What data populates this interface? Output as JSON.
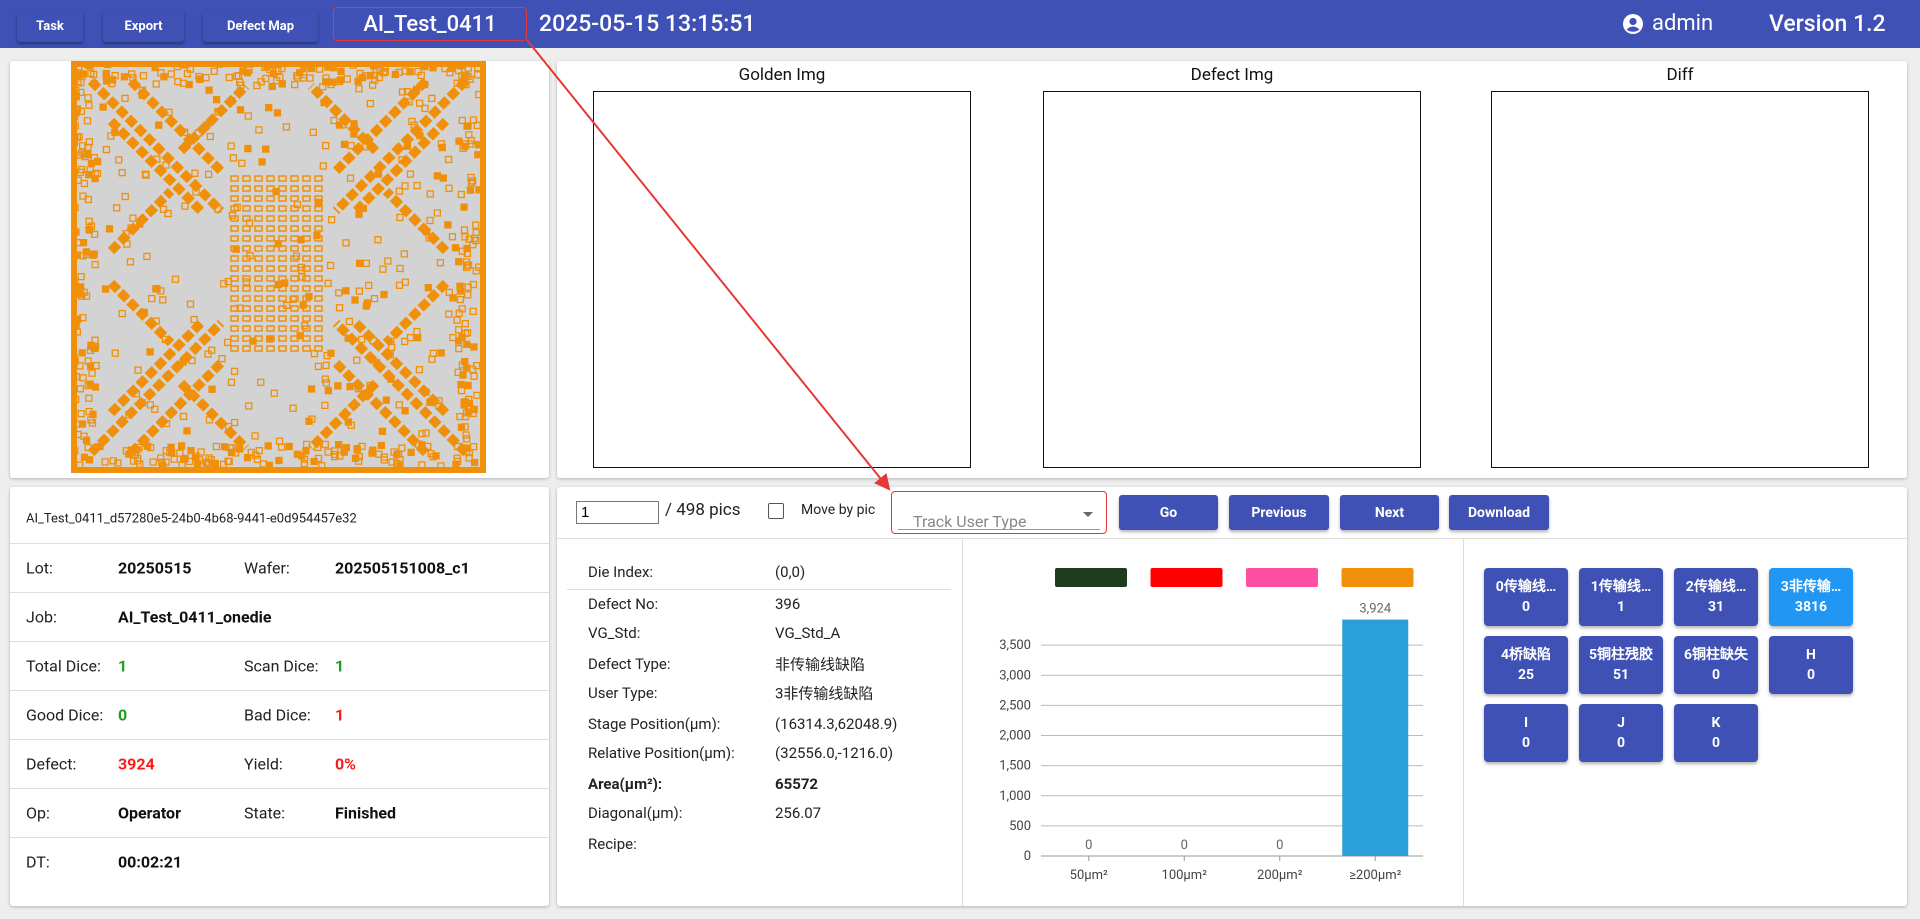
{
  "nav": {
    "buttons": [
      "Task",
      "Export",
      "Defect Map"
    ],
    "task_name": "AI_Test_0411",
    "datetime": "2025-05-15 13:15:51",
    "user": "admin",
    "version": "Version 1.2"
  },
  "images": {
    "titles": [
      "Golden Img",
      "Defect Img",
      "Diff"
    ]
  },
  "info": {
    "id": "AI_Test_0411_d57280e5-24b0-4b68-9441-e0d954457e32",
    "rows": [
      [
        {
          "label": "Lot:",
          "value": "20250515"
        },
        {
          "label": "Wafer:",
          "value": "202505151008_c1"
        }
      ],
      [
        {
          "label": "Job:",
          "value": "AI_Test_0411_onedie"
        }
      ],
      [
        {
          "label": "Total Dice:",
          "value": "1",
          "color": "#1e9e1e"
        },
        {
          "label": "Scan Dice:",
          "value": "1",
          "color": "#1e9e1e"
        }
      ],
      [
        {
          "label": "Good Dice:",
          "value": "0",
          "color": "#1e9e1e"
        },
        {
          "label": "Bad Dice:",
          "value": "1",
          "color": "#ff1a1a"
        }
      ],
      [
        {
          "label": "Defect:",
          "value": "3924",
          "color": "#ff1a1a"
        },
        {
          "label": "Yield:",
          "value": "0%",
          "color": "#ff1a1a"
        }
      ],
      [
        {
          "label": "Op:",
          "value": "Operator"
        },
        {
          "label": "State:",
          "value": "Finished"
        }
      ],
      [
        {
          "label": "DT:",
          "value": "00:02:21"
        }
      ]
    ]
  },
  "controls": {
    "page": "1",
    "total": "/ 498 pics",
    "move_by_pic": "Move by pic",
    "select_placeholder": "Track User Type",
    "buttons": [
      "Go",
      "Previous",
      "Next",
      "Download"
    ]
  },
  "details": [
    {
      "label": "Die Index:",
      "value": "(0,0)"
    },
    {
      "label": "Defect No:",
      "value": "396"
    },
    {
      "label": "VG_Std:",
      "value": "VG_Std_A"
    },
    {
      "label": "Defect Type:",
      "value": "非传输线缺陷"
    },
    {
      "label": "User Type:",
      "value": "3非传输线缺陷"
    },
    {
      "label": "Stage Position(µm):",
      "value": "(16314.3,62048.9)"
    },
    {
      "label": "Relative Position(µm):",
      "value": "(32556.0,-1216.0)"
    },
    {
      "label": "Area(µm²):",
      "value": "65572",
      "bold": true
    },
    {
      "label": "Diagonal(µm):",
      "value": "256.07"
    },
    {
      "label": "Recipe:"
    }
  ],
  "chart_data": {
    "type": "bar",
    "categories": [
      "50µm²",
      "100µm²",
      "200µm²",
      "≥200µm²"
    ],
    "values": [
      0,
      0,
      0,
      3924
    ],
    "value_labels": [
      "0",
      "0",
      "0",
      "3,924"
    ],
    "color": "#2b9fd8",
    "ylim": [
      0,
      4000
    ],
    "yticks": [
      0,
      500,
      {
        "value": 1000,
        "label": "1,000"
      },
      {
        "value": 1500,
        "label": "1,500"
      },
      {
        "value": 2000,
        "label": "2,000"
      },
      {
        "value": 2500,
        "label": "2,500"
      },
      {
        "value": 3000,
        "label": "3,000"
      },
      {
        "value": 3500,
        "label": "3,500"
      }
    ],
    "grid": true,
    "legend_colors": [
      "#1e3d1e",
      "#ff0000",
      "#ff4fa3",
      "#f0900a"
    ]
  },
  "classes": [
    {
      "name": "0传输线…",
      "count": 0
    },
    {
      "name": "1传输线…",
      "count": 1
    },
    {
      "name": "2传输线…",
      "count": 31
    },
    {
      "name": "3非传输…",
      "count": 3816,
      "active": true
    },
    {
      "name": "4桥缺陷",
      "count": 25
    },
    {
      "name": "5铜柱残胶",
      "count": 51
    },
    {
      "name": "6铜柱缺失",
      "count": 0
    },
    {
      "name": "H",
      "count": 0
    },
    {
      "name": "I",
      "count": 0
    },
    {
      "name": "J",
      "count": 0
    },
    {
      "name": "K",
      "count": 0
    }
  ]
}
